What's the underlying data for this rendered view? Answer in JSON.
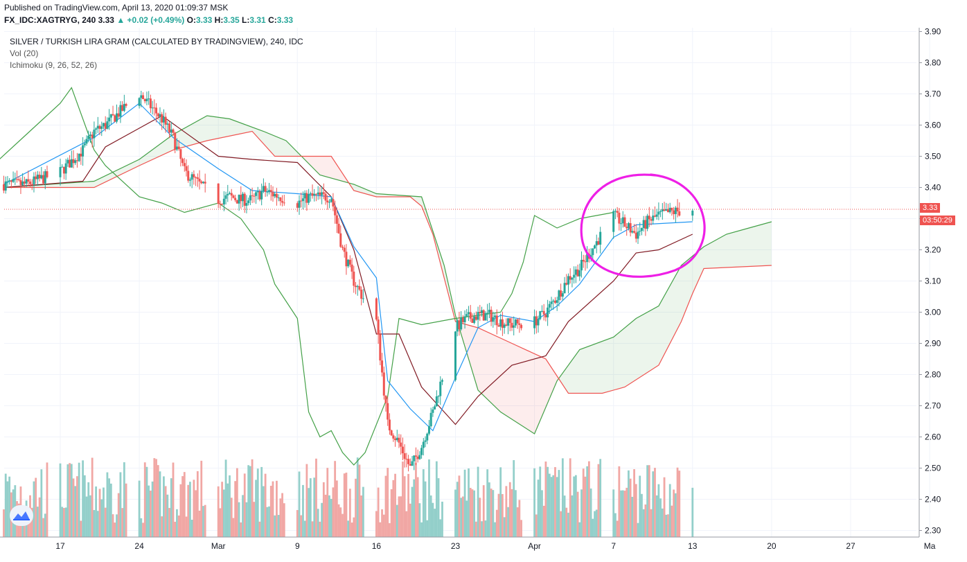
{
  "header": {
    "published": "Published on TradingView.com, April 13, 2020 01:09:37 MSK",
    "symbol": "FX_IDC:XAGTRYG, 240",
    "last": "3.33",
    "change": "+0.02 (+0.49%)",
    "o_label": "O:",
    "o": "3.33",
    "h_label": "H:",
    "h": "3.35",
    "l_label": "L:",
    "l": "3.31",
    "c_label": "C:",
    "c": "3.33"
  },
  "legend": {
    "title": "SILVER / TURKISH LIRA GRAM (CALCULATED BY TRADINGVIEW), 240, IDC",
    "vol": "Vol (20)",
    "ichimoku": "Ichimoku (9, 26, 52, 26)"
  },
  "price_tags": {
    "price": "3.33",
    "countdown": "03:50:29"
  },
  "colors": {
    "up": "#26a69a",
    "down": "#ef5350",
    "vol_up": "#93cfca",
    "vol_down": "#f1a7a4",
    "conversion": "#2196f3",
    "base": "#801922",
    "lagging": "#43a047",
    "span_a": "#43a047",
    "span_b": "#ef5350",
    "annotation": "#ee1fe6",
    "grid": "#f0f3fa"
  },
  "chart_data": {
    "type": "candlestick",
    "symbol": "FX_IDC:XAGTRYG",
    "interval": "240",
    "y_ticks": [
      3.9,
      3.8,
      3.7,
      3.6,
      3.5,
      3.4,
      3.3,
      3.2,
      3.1,
      3.0,
      2.9,
      2.8,
      2.7,
      2.6,
      2.5,
      2.4,
      2.3
    ],
    "y_range": [
      2.28,
      3.91
    ],
    "x_ticks": [
      "17",
      "24",
      "Mar",
      "9",
      "16",
      "23",
      "Apr",
      "7",
      "13",
      "20",
      "27",
      "Ma"
    ],
    "x_tick_dates": [
      "2020-02-17",
      "2020-02-24",
      "2020-03-02",
      "2020-03-09",
      "2020-03-16",
      "2020-03-23",
      "2020-03-30",
      "2020-04-06",
      "2020-04-13",
      "2020-04-20",
      "2020-04-27",
      "2020-05-04"
    ],
    "close_path": [
      [
        "2020-02-12",
        3.41
      ],
      [
        "2020-02-14",
        3.41
      ],
      [
        "2020-02-17",
        3.45
      ],
      [
        "2020-02-19",
        3.52
      ],
      [
        "2020-02-20",
        3.58
      ],
      [
        "2020-02-21",
        3.6
      ],
      [
        "2020-02-24",
        3.7
      ],
      [
        "2020-02-25",
        3.66
      ],
      [
        "2020-02-26",
        3.62
      ],
      [
        "2020-02-27",
        3.56
      ],
      [
        "2020-02-28",
        3.45
      ],
      [
        "2020-03-02",
        3.36
      ],
      [
        "2020-03-03",
        3.37
      ],
      [
        "2020-03-04",
        3.36
      ],
      [
        "2020-03-05",
        3.36
      ],
      [
        "2020-03-06",
        3.39
      ],
      [
        "2020-03-09",
        3.35
      ],
      [
        "2020-03-10",
        3.37
      ],
      [
        "2020-03-11",
        3.37
      ],
      [
        "2020-03-12",
        3.37
      ],
      [
        "2020-03-13",
        3.2
      ],
      [
        "2020-03-14",
        3.1
      ],
      [
        "2020-03-16",
        2.97
      ],
      [
        "2020-03-17",
        2.64
      ],
      [
        "2020-03-18",
        2.58
      ],
      [
        "2020-03-19",
        2.5
      ],
      [
        "2020-03-20",
        2.57
      ],
      [
        "2020-03-21",
        2.68
      ],
      [
        "2020-03-23",
        2.95
      ],
      [
        "2020-03-24",
        2.98
      ],
      [
        "2020-03-25",
        2.99
      ],
      [
        "2020-03-26",
        2.99
      ],
      [
        "2020-03-27",
        2.97
      ],
      [
        "2020-03-28",
        2.96
      ],
      [
        "2020-03-30",
        2.97
      ],
      [
        "2020-03-31",
        3.0
      ],
      [
        "2020-04-01",
        3.05
      ],
      [
        "2020-04-02",
        3.11
      ],
      [
        "2020-04-03",
        3.14
      ],
      [
        "2020-04-06",
        3.31
      ],
      [
        "2020-04-07",
        3.28
      ],
      [
        "2020-04-08",
        3.25
      ],
      [
        "2020-04-09",
        3.29
      ],
      [
        "2020-04-10",
        3.31
      ],
      [
        "2020-04-11",
        3.32
      ],
      [
        "2020-04-13",
        3.33
      ]
    ],
    "conversion_line": [
      [
        "2020-02-12",
        3.41
      ],
      [
        "2020-02-20",
        3.56
      ],
      [
        "2020-02-24",
        3.67
      ],
      [
        "2020-02-27",
        3.56
      ],
      [
        "2020-03-02",
        3.46
      ],
      [
        "2020-03-05",
        3.39
      ],
      [
        "2020-03-09",
        3.38
      ],
      [
        "2020-03-12",
        3.37
      ],
      [
        "2020-03-14",
        3.21
      ],
      [
        "2020-03-16",
        3.11
      ],
      [
        "2020-03-17",
        2.78
      ],
      [
        "2020-03-19",
        2.69
      ],
      [
        "2020-03-21",
        2.62
      ],
      [
        "2020-03-23",
        2.79
      ],
      [
        "2020-03-25",
        2.95
      ],
      [
        "2020-03-27",
        2.99
      ],
      [
        "2020-03-30",
        2.97
      ],
      [
        "2020-04-01",
        3.02
      ],
      [
        "2020-04-03",
        3.09
      ],
      [
        "2020-04-06",
        3.24
      ],
      [
        "2020-04-08",
        3.28
      ],
      [
        "2020-04-13",
        3.29
      ]
    ],
    "base_line": [
      [
        "2020-02-12",
        3.4
      ],
      [
        "2020-02-19",
        3.42
      ],
      [
        "2020-02-21",
        3.53
      ],
      [
        "2020-02-24",
        3.59
      ],
      [
        "2020-02-26",
        3.63
      ],
      [
        "2020-03-02",
        3.5
      ],
      [
        "2020-03-05",
        3.49
      ],
      [
        "2020-03-09",
        3.48
      ],
      [
        "2020-03-12",
        3.37
      ],
      [
        "2020-03-14",
        3.2
      ],
      [
        "2020-03-16",
        2.93
      ],
      [
        "2020-03-18",
        2.93
      ],
      [
        "2020-03-20",
        2.76
      ],
      [
        "2020-03-23",
        2.64
      ],
      [
        "2020-03-25",
        2.73
      ],
      [
        "2020-03-28",
        2.83
      ],
      [
        "2020-03-31",
        2.86
      ],
      [
        "2020-04-02",
        2.97
      ],
      [
        "2020-04-06",
        3.1
      ],
      [
        "2020-04-08",
        3.19
      ],
      [
        "2020-04-10",
        3.2
      ],
      [
        "2020-04-13",
        3.25
      ]
    ],
    "lagging_span": [
      [
        "2020-02-11",
        3.47
      ],
      [
        "2020-02-14",
        3.57
      ],
      [
        "2020-02-17",
        3.67
      ],
      [
        "2020-02-18",
        3.72
      ],
      [
        "2020-02-20",
        3.52
      ],
      [
        "2020-02-21",
        3.47
      ],
      [
        "2020-02-24",
        3.37
      ],
      [
        "2020-02-26",
        3.35
      ],
      [
        "2020-02-28",
        3.32
      ],
      [
        "2020-03-02",
        3.35
      ],
      [
        "2020-03-04",
        3.3
      ],
      [
        "2020-03-06",
        3.2
      ],
      [
        "2020-03-07",
        3.09
      ],
      [
        "2020-03-09",
        2.98
      ],
      [
        "2020-03-10",
        2.68
      ],
      [
        "2020-03-11",
        2.6
      ],
      [
        "2020-03-12",
        2.62
      ],
      [
        "2020-03-13",
        2.55
      ],
      [
        "2020-03-14",
        2.51
      ],
      [
        "2020-03-15",
        2.55
      ],
      [
        "2020-03-17",
        2.73
      ],
      [
        "2020-03-18",
        2.98
      ],
      [
        "2020-03-20",
        2.96
      ],
      [
        "2020-03-23",
        2.98
      ],
      [
        "2020-03-25",
        2.99
      ],
      [
        "2020-03-27",
        3.0
      ],
      [
        "2020-03-28",
        3.06
      ],
      [
        "2020-03-29",
        3.16
      ],
      [
        "2020-03-30",
        3.31
      ],
      [
        "2020-04-01",
        3.27
      ],
      [
        "2020-04-03",
        3.3
      ],
      [
        "2020-04-06",
        3.32
      ]
    ],
    "cloud_span_a": [
      [
        "2020-02-12",
        3.4
      ],
      [
        "2020-02-20",
        3.42
      ],
      [
        "2020-02-24",
        3.49
      ],
      [
        "2020-02-27",
        3.57
      ],
      [
        "2020-03-01",
        3.63
      ],
      [
        "2020-03-03",
        3.62
      ],
      [
        "2020-03-06",
        3.58
      ],
      [
        "2020-03-08",
        3.55
      ],
      [
        "2020-03-11",
        3.44
      ],
      [
        "2020-03-14",
        3.41
      ],
      [
        "2020-03-16",
        3.38
      ],
      [
        "2020-03-20",
        3.37
      ],
      [
        "2020-03-22",
        3.15
      ],
      [
        "2020-03-23",
        2.99
      ],
      [
        "2020-03-25",
        2.75
      ],
      [
        "2020-03-27",
        2.68
      ],
      [
        "2020-03-30",
        2.61
      ],
      [
        "2020-04-01",
        2.78
      ],
      [
        "2020-04-03",
        2.88
      ],
      [
        "2020-04-06",
        2.92
      ],
      [
        "2020-04-08",
        2.98
      ],
      [
        "2020-04-10",
        3.02
      ],
      [
        "2020-04-12",
        3.15
      ],
      [
        "2020-04-14",
        3.21
      ],
      [
        "2020-04-16",
        3.25
      ],
      [
        "2020-04-18",
        3.27
      ],
      [
        "2020-04-20",
        3.29
      ]
    ],
    "cloud_span_b": [
      [
        "2020-02-12",
        3.4
      ],
      [
        "2020-02-20",
        3.4
      ],
      [
        "2020-02-24",
        3.47
      ],
      [
        "2020-02-27",
        3.52
      ],
      [
        "2020-03-01",
        3.55
      ],
      [
        "2020-03-05",
        3.58
      ],
      [
        "2020-03-07",
        3.5
      ],
      [
        "2020-03-12",
        3.5
      ],
      [
        "2020-03-14",
        3.39
      ],
      [
        "2020-03-16",
        3.37
      ],
      [
        "2020-03-19",
        3.37
      ],
      [
        "2020-03-20",
        3.34
      ],
      [
        "2020-03-21",
        3.25
      ],
      [
        "2020-03-23",
        2.97
      ],
      [
        "2020-03-25",
        2.95
      ],
      [
        "2020-03-28",
        2.9
      ],
      [
        "2020-03-31",
        2.85
      ],
      [
        "2020-04-02",
        2.74
      ],
      [
        "2020-04-05",
        2.74
      ],
      [
        "2020-04-07",
        2.76
      ],
      [
        "2020-04-10",
        2.83
      ],
      [
        "2020-04-12",
        2.97
      ],
      [
        "2020-04-13",
        3.06
      ],
      [
        "2020-04-14",
        3.14
      ],
      [
        "2020-04-20",
        3.15
      ]
    ],
    "current_price": 3.33,
    "volume_visible": true,
    "annotation": "hand-drawn magenta circle around the latest price action",
    "grid": true
  }
}
